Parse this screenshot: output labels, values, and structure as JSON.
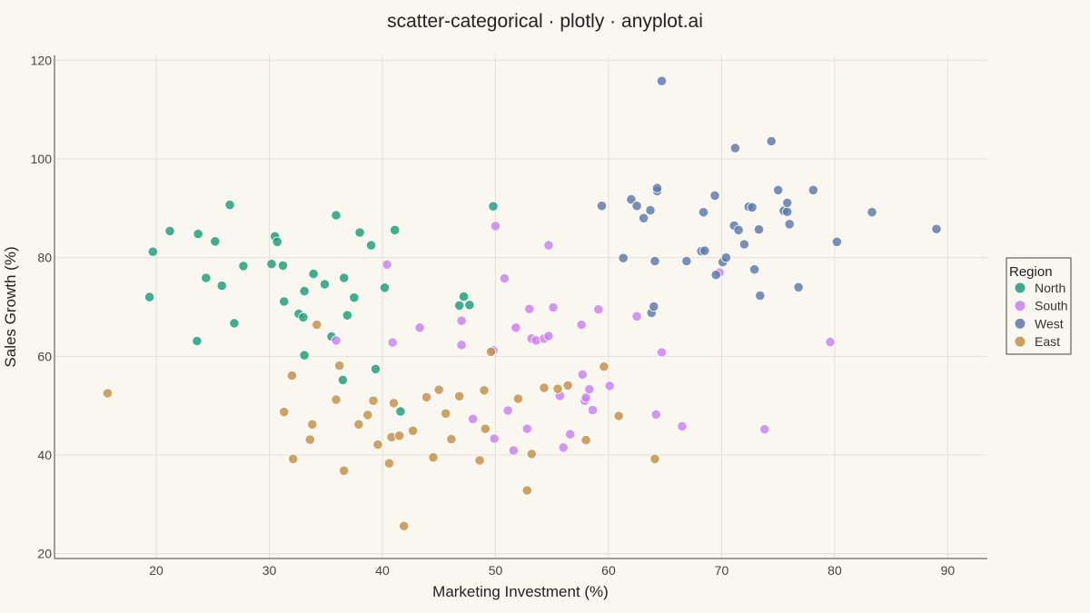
{
  "chart_data": {
    "type": "scatter",
    "title": "scatter-categorical · plotly · anyplot.ai",
    "xlabel": "Marketing Investment (%)",
    "ylabel": "Sales Growth (%)",
    "xlim": [
      11,
      93.5
    ],
    "ylim": [
      19,
      121
    ],
    "xticks": [
      20,
      30,
      40,
      50,
      60,
      70,
      80,
      90
    ],
    "yticks": [
      20,
      40,
      60,
      80,
      100,
      120
    ],
    "grid": true,
    "legend": {
      "title": "Region",
      "placement": "right"
    },
    "series": [
      {
        "name": "North",
        "color": "#1A9E77",
        "points": [
          [
            19.4,
            72.0
          ],
          [
            19.7,
            81.2
          ],
          [
            21.2,
            85.4
          ],
          [
            23.7,
            84.8
          ],
          [
            23.6,
            63.1
          ],
          [
            24.4,
            75.9
          ],
          [
            25.2,
            83.3
          ],
          [
            25.8,
            74.3
          ],
          [
            26.5,
            90.7
          ],
          [
            26.9,
            66.7
          ],
          [
            27.7,
            78.3
          ],
          [
            30.2,
            78.7
          ],
          [
            30.5,
            84.3
          ],
          [
            30.7,
            83.2
          ],
          [
            31.2,
            78.4
          ],
          [
            31.3,
            71.1
          ],
          [
            32.6,
            68.6
          ],
          [
            33.0,
            67.9
          ],
          [
            33.1,
            73.2
          ],
          [
            33.1,
            60.2
          ],
          [
            33.9,
            76.7
          ],
          [
            34.9,
            74.6
          ],
          [
            35.5,
            64.0
          ],
          [
            35.9,
            88.6
          ],
          [
            36.5,
            55.2
          ],
          [
            36.6,
            75.9
          ],
          [
            36.9,
            68.3
          ],
          [
            37.5,
            71.9
          ],
          [
            38.0,
            85.1
          ],
          [
            39.0,
            82.5
          ],
          [
            39.4,
            57.4
          ],
          [
            40.2,
            73.9
          ],
          [
            41.1,
            85.6
          ],
          [
            41.6,
            48.8
          ],
          [
            46.8,
            70.3
          ],
          [
            47.2,
            72.1
          ],
          [
            47.7,
            70.4
          ],
          [
            49.8,
            90.4
          ]
        ]
      },
      {
        "name": "South",
        "color": "#C97FF0",
        "points": [
          [
            35.9,
            63.2
          ],
          [
            40.4,
            78.6
          ],
          [
            40.9,
            62.8
          ],
          [
            43.3,
            65.8
          ],
          [
            47.0,
            67.2
          ],
          [
            47.0,
            62.3
          ],
          [
            48.0,
            47.3
          ],
          [
            49.8,
            61.2
          ],
          [
            49.9,
            43.3
          ],
          [
            50.0,
            86.4
          ],
          [
            50.8,
            75.8
          ],
          [
            51.1,
            49.0
          ],
          [
            51.6,
            40.9
          ],
          [
            51.8,
            65.8
          ],
          [
            52.8,
            45.3
          ],
          [
            53.0,
            69.6
          ],
          [
            53.2,
            63.6
          ],
          [
            53.6,
            63.2
          ],
          [
            54.3,
            63.6
          ],
          [
            54.7,
            64.1
          ],
          [
            54.7,
            82.5
          ],
          [
            55.1,
            69.9
          ],
          [
            55.7,
            52.0
          ],
          [
            56.0,
            41.5
          ],
          [
            56.6,
            44.2
          ],
          [
            57.6,
            66.4
          ],
          [
            57.7,
            56.3
          ],
          [
            57.9,
            51.0
          ],
          [
            58.0,
            51.6
          ],
          [
            58.3,
            53.3
          ],
          [
            58.6,
            49.1
          ],
          [
            59.1,
            69.5
          ],
          [
            60.1,
            54.0
          ],
          [
            62.5,
            68.1
          ],
          [
            64.2,
            48.2
          ],
          [
            64.7,
            60.8
          ],
          [
            66.5,
            45.8
          ],
          [
            69.8,
            77.0
          ],
          [
            73.8,
            45.2
          ],
          [
            79.6,
            62.9
          ]
        ]
      },
      {
        "name": "West",
        "color": "#5C79AA",
        "points": [
          [
            59.4,
            90.5
          ],
          [
            61.3,
            79.9
          ],
          [
            62.0,
            91.8
          ],
          [
            62.5,
            90.5
          ],
          [
            63.1,
            88.0
          ],
          [
            63.7,
            89.6
          ],
          [
            63.8,
            68.8
          ],
          [
            64.0,
            70.1
          ],
          [
            64.1,
            79.3
          ],
          [
            64.3,
            93.5
          ],
          [
            64.3,
            94.1
          ],
          [
            64.7,
            115.8
          ],
          [
            66.9,
            79.3
          ],
          [
            68.2,
            81.3
          ],
          [
            68.4,
            89.2
          ],
          [
            68.5,
            81.4
          ],
          [
            69.4,
            92.6
          ],
          [
            69.5,
            76.5
          ],
          [
            70.1,
            79.1
          ],
          [
            70.4,
            80.0
          ],
          [
            71.1,
            86.5
          ],
          [
            71.2,
            102.2
          ],
          [
            71.5,
            85.6
          ],
          [
            72.0,
            82.7
          ],
          [
            72.4,
            90.3
          ],
          [
            72.7,
            90.2
          ],
          [
            72.9,
            77.6
          ],
          [
            73.3,
            85.7
          ],
          [
            73.4,
            72.3
          ],
          [
            74.4,
            103.6
          ],
          [
            75.0,
            93.7
          ],
          [
            75.5,
            89.5
          ],
          [
            75.8,
            89.3
          ],
          [
            75.8,
            91.1
          ],
          [
            76.0,
            86.8
          ],
          [
            76.8,
            74.0
          ],
          [
            78.1,
            93.7
          ],
          [
            80.2,
            83.2
          ],
          [
            83.3,
            89.2
          ],
          [
            89.0,
            85.8
          ]
        ]
      },
      {
        "name": "East",
        "color": "#C48F45",
        "points": [
          [
            15.7,
            52.5
          ],
          [
            31.3,
            48.7
          ],
          [
            32.0,
            56.1
          ],
          [
            32.1,
            39.2
          ],
          [
            33.6,
            43.1
          ],
          [
            33.8,
            46.2
          ],
          [
            34.2,
            66.4
          ],
          [
            35.9,
            51.2
          ],
          [
            36.2,
            58.1
          ],
          [
            36.6,
            36.8
          ],
          [
            37.9,
            46.2
          ],
          [
            38.7,
            48.1
          ],
          [
            39.2,
            51.0
          ],
          [
            39.6,
            42.1
          ],
          [
            40.6,
            38.3
          ],
          [
            40.8,
            43.6
          ],
          [
            41.0,
            50.5
          ],
          [
            41.5,
            43.9
          ],
          [
            41.9,
            25.6
          ],
          [
            42.7,
            44.9
          ],
          [
            43.9,
            51.7
          ],
          [
            44.5,
            39.5
          ],
          [
            45.0,
            53.2
          ],
          [
            45.6,
            48.4
          ],
          [
            46.1,
            43.2
          ],
          [
            46.8,
            51.9
          ],
          [
            48.6,
            38.9
          ],
          [
            49.0,
            53.1
          ],
          [
            49.1,
            45.3
          ],
          [
            49.6,
            60.9
          ],
          [
            52.0,
            51.4
          ],
          [
            52.8,
            32.8
          ],
          [
            53.2,
            40.2
          ],
          [
            54.3,
            53.6
          ],
          [
            55.5,
            53.4
          ],
          [
            56.4,
            54.1
          ],
          [
            58.0,
            43.0
          ],
          [
            59.6,
            57.9
          ],
          [
            60.9,
            47.9
          ],
          [
            64.1,
            39.2
          ]
        ]
      }
    ]
  }
}
